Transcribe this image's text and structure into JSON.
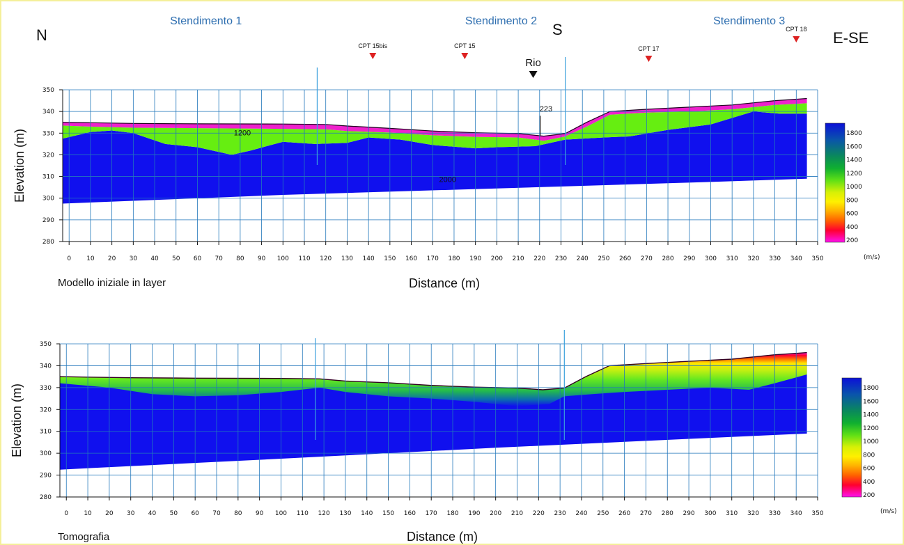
{
  "header": {
    "north": "N",
    "south": "S",
    "east_southeast": "E-SE",
    "stendimenti": [
      {
        "label": "Stendimento 1",
        "x": 64
      },
      {
        "label": "Stendimento 2",
        "x": 202
      },
      {
        "label": "Stendimento 3",
        "x": 318
      }
    ],
    "markers": [
      {
        "label": "CPT 15bis",
        "x": 142
      },
      {
        "label": "CPT 15",
        "x": 185
      },
      {
        "label": "Rio",
        "x": 217
      },
      {
        "label": "CPT 17",
        "x": 271
      },
      {
        "label": "CPT 18",
        "x": 340
      }
    ]
  },
  "colors": {
    "deep": "#1010ee",
    "green": "#66ee11",
    "magenta": "#ee22cc",
    "guide": "#3aa0dd",
    "grid": "#2277bb",
    "marker": "#dd2222"
  },
  "colorbar": {
    "labels": [
      "1800",
      "1600",
      "1400",
      "1200",
      "1000",
      "800",
      "600",
      "400",
      "200"
    ],
    "unit": "(m/s)"
  },
  "chart_data": [
    {
      "type": "area",
      "name": "layer-model",
      "caption": "Modello iniziale in layer",
      "xlabel": "Distance (m)",
      "ylabel": "Elevation (m)",
      "xlim": [
        -3,
        350
      ],
      "ylim": [
        280,
        350
      ],
      "xticks": [
        0,
        10,
        20,
        30,
        40,
        50,
        60,
        70,
        80,
        90,
        100,
        110,
        120,
        130,
        140,
        150,
        160,
        170,
        180,
        190,
        200,
        210,
        220,
        230,
        240,
        250,
        260,
        270,
        280,
        290,
        300,
        310,
        320,
        330,
        340,
        350
      ],
      "yticks": [
        280,
        290,
        300,
        310,
        320,
        330,
        340,
        350
      ],
      "guide_lines_x": [
        116,
        232
      ],
      "surface": [
        [
          -3,
          335
        ],
        [
          10,
          334.8
        ],
        [
          30,
          334.5
        ],
        [
          60,
          334.3
        ],
        [
          100,
          334.2
        ],
        [
          120,
          334
        ],
        [
          130,
          333.3
        ],
        [
          150,
          332.2
        ],
        [
          170,
          331
        ],
        [
          190,
          330.2
        ],
        [
          210,
          329.8
        ],
        [
          222,
          328.6
        ],
        [
          232,
          329.8
        ],
        [
          242,
          335
        ],
        [
          253,
          340
        ],
        [
          270,
          341
        ],
        [
          290,
          342
        ],
        [
          310,
          343
        ],
        [
          330,
          345
        ],
        [
          345,
          346
        ]
      ],
      "magenta_base": [
        [
          -3,
          333.5
        ],
        [
          10,
          333
        ],
        [
          30,
          332.5
        ],
        [
          60,
          332.3
        ],
        [
          100,
          332
        ],
        [
          120,
          331.8
        ],
        [
          130,
          331
        ],
        [
          150,
          330.3
        ],
        [
          170,
          329
        ],
        [
          190,
          328.3
        ],
        [
          210,
          328
        ],
        [
          222,
          326.5
        ],
        [
          232,
          328.5
        ],
        [
          242,
          333
        ],
        [
          253,
          338.5
        ],
        [
          270,
          339.5
        ],
        [
          290,
          340
        ],
        [
          310,
          341
        ],
        [
          330,
          343
        ],
        [
          345,
          343.8
        ]
      ],
      "top_layer_base": [
        [
          -3,
          327.5
        ],
        [
          10,
          330.5
        ],
        [
          20,
          331.2
        ],
        [
          30,
          330
        ],
        [
          45,
          325
        ],
        [
          60,
          323.5
        ],
        [
          76,
          320
        ],
        [
          85,
          322
        ],
        [
          100,
          326
        ],
        [
          115,
          325
        ],
        [
          130,
          325.5
        ],
        [
          140,
          328
        ],
        [
          155,
          327
        ],
        [
          170,
          324.5
        ],
        [
          190,
          323
        ],
        [
          200,
          323.5
        ],
        [
          218,
          324
        ],
        [
          232,
          327
        ],
        [
          250,
          328
        ],
        [
          262,
          328.5
        ],
        [
          280,
          331.5
        ],
        [
          300,
          334
        ],
        [
          320,
          340
        ],
        [
          332,
          339
        ],
        [
          345,
          339
        ]
      ],
      "bottom": [
        [
          -3,
          297.5
        ],
        [
          100,
          301.5
        ],
        [
          200,
          304.5
        ],
        [
          300,
          307.5
        ],
        [
          345,
          309
        ]
      ],
      "annotations": [
        {
          "text": "1200",
          "x": 81,
          "y": 329
        },
        {
          "text": "2000",
          "x": 177,
          "y": 307.5
        },
        {
          "text": "223",
          "x": 223,
          "y": 340
        }
      ]
    },
    {
      "type": "heatmap",
      "name": "tomography",
      "caption": "Tomografia",
      "xlabel": "Distance (m)",
      "ylabel": "Elevation (m)",
      "xlim": [
        -3,
        350
      ],
      "ylim": [
        280,
        350
      ],
      "xticks": [
        0,
        10,
        20,
        30,
        40,
        50,
        60,
        70,
        80,
        90,
        100,
        110,
        120,
        130,
        140,
        150,
        160,
        170,
        180,
        190,
        200,
        210,
        220,
        230,
        240,
        250,
        260,
        270,
        280,
        290,
        300,
        310,
        320,
        330,
        340,
        350
      ],
      "yticks": [
        280,
        290,
        300,
        310,
        320,
        330,
        340,
        350
      ],
      "guide_lines_x": [
        116,
        232
      ],
      "surface": [
        [
          -3,
          335
        ],
        [
          10,
          334.8
        ],
        [
          30,
          334.5
        ],
        [
          60,
          334.3
        ],
        [
          100,
          334.2
        ],
        [
          118,
          334
        ],
        [
          130,
          333
        ],
        [
          150,
          332.2
        ],
        [
          170,
          331
        ],
        [
          190,
          330.2
        ],
        [
          210,
          329.8
        ],
        [
          222,
          329
        ],
        [
          232,
          329.8
        ],
        [
          242,
          335
        ],
        [
          253,
          340
        ],
        [
          270,
          341
        ],
        [
          290,
          342
        ],
        [
          310,
          343
        ],
        [
          330,
          345
        ],
        [
          345,
          346
        ]
      ],
      "green_zone_base": [
        [
          -3,
          332
        ],
        [
          20,
          330
        ],
        [
          40,
          327
        ],
        [
          60,
          326
        ],
        [
          80,
          326.5
        ],
        [
          100,
          328
        ],
        [
          118,
          330
        ],
        [
          130,
          328
        ],
        [
          150,
          326
        ],
        [
          170,
          325
        ],
        [
          190,
          323.5
        ],
        [
          210,
          321.5
        ],
        [
          225,
          322.5
        ],
        [
          232,
          326
        ],
        [
          245,
          327
        ],
        [
          260,
          328
        ],
        [
          280,
          329
        ],
        [
          300,
          330
        ],
        [
          318,
          329
        ],
        [
          330,
          332
        ],
        [
          345,
          336
        ]
      ],
      "bottom": [
        [
          -3,
          292.5
        ],
        [
          100,
          297.5
        ],
        [
          200,
          302.5
        ],
        [
          300,
          307
        ],
        [
          345,
          309
        ]
      ]
    }
  ]
}
